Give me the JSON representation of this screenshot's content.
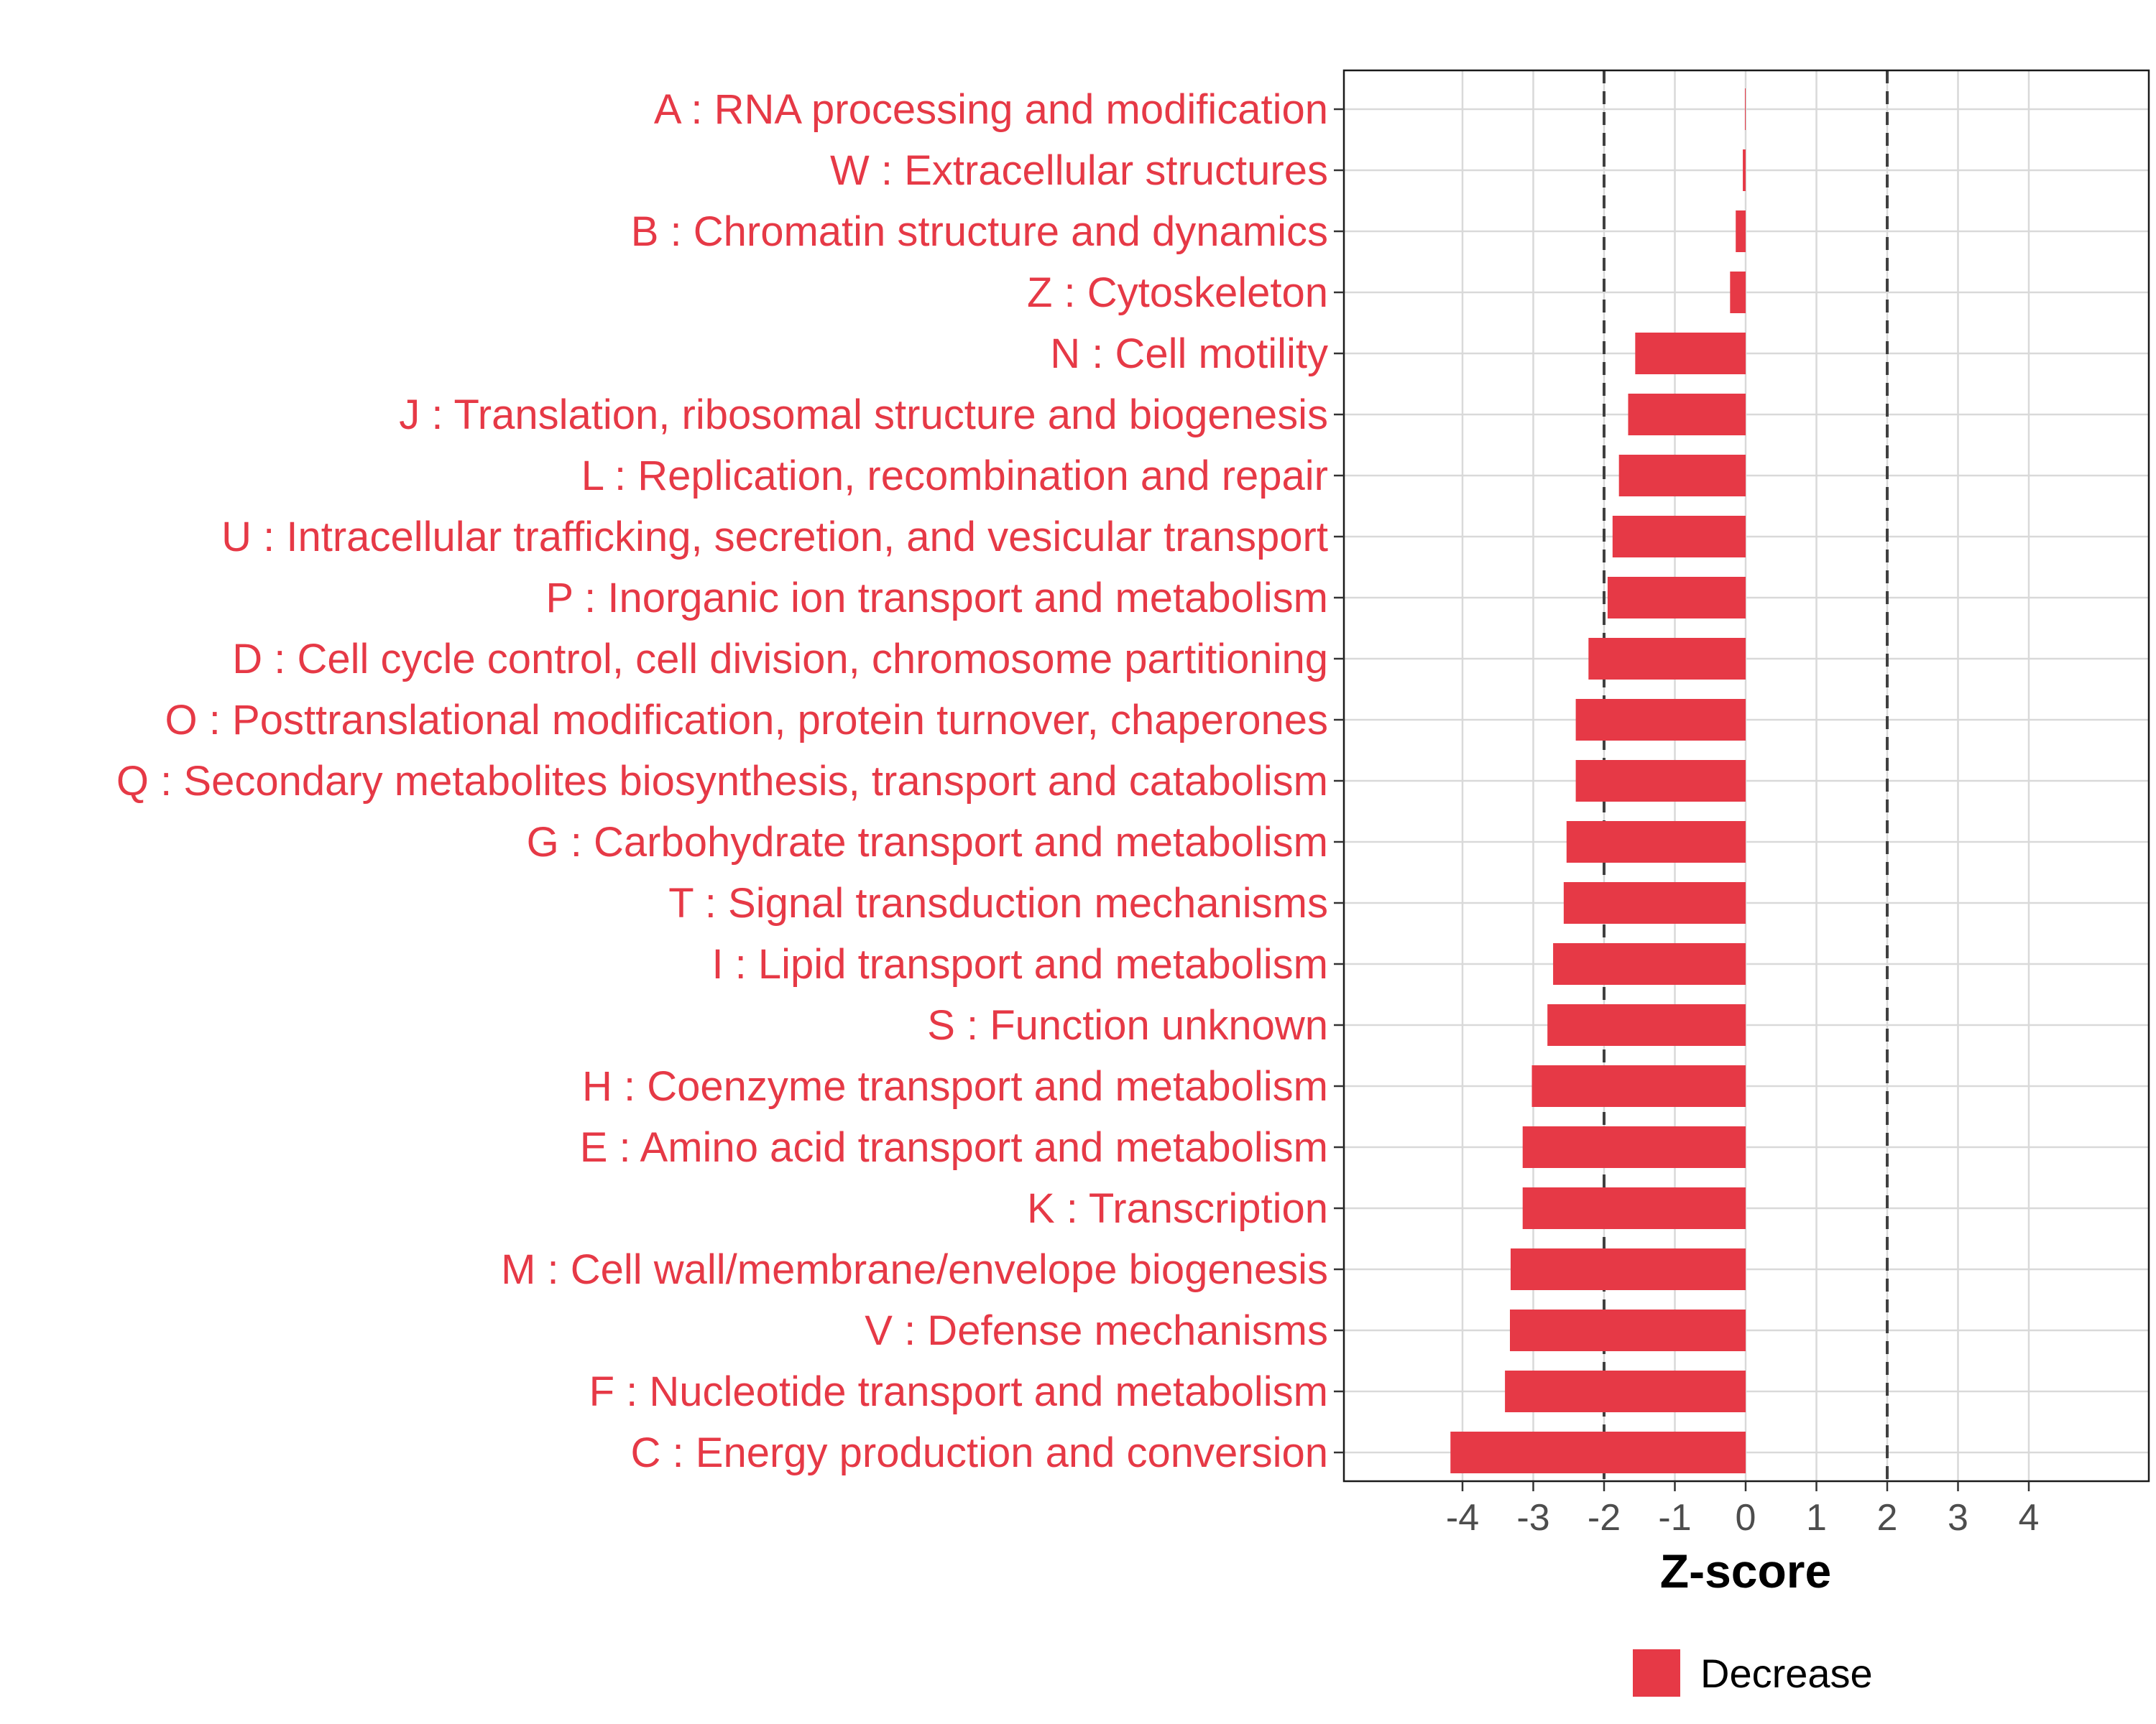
{
  "chart_data": {
    "type": "bar",
    "orientation": "horizontal",
    "categories": [
      "A : RNA processing and modification",
      "W : Extracellular structures",
      "B : Chromatin structure and dynamics",
      "Z : Cytoskeleton",
      "N : Cell motility",
      "J : Translation, ribosomal structure and biogenesis",
      "L : Replication, recombination and repair",
      "U : Intracellular trafficking, secretion, and vesicular transport",
      "P : Inorganic ion transport and metabolism",
      "D : Cell cycle control, cell division, chromosome partitioning",
      "O : Posttranslational modification, protein turnover, chaperones",
      "Q : Secondary metabolites biosynthesis, transport and catabolism",
      "G : Carbohydrate transport and metabolism",
      "T : Signal transduction mechanisms",
      "I : Lipid transport and metabolism",
      "S : Function unknown",
      "H : Coenzyme transport and metabolism",
      "E : Amino acid transport and metabolism",
      "K : Transcription",
      "M : Cell wall/membrane/envelope biogenesis",
      "V : Defense mechanisms",
      "F : Nucleotide transport and metabolism",
      "C : Energy production and conversion"
    ],
    "values": [
      -0.01,
      -0.04,
      -0.14,
      -0.22,
      -1.56,
      -1.66,
      -1.79,
      -1.88,
      -1.95,
      -2.22,
      -2.4,
      -2.4,
      -2.53,
      -2.57,
      -2.72,
      -2.8,
      -3.02,
      -3.15,
      -3.15,
      -3.32,
      -3.33,
      -3.4,
      -4.17
    ],
    "xlabel": "Z-score",
    "ylabel": "",
    "xlim": [
      -5.7,
      5.7
    ],
    "xticks": [
      "-4",
      "-3",
      "-2",
      "-1",
      "0",
      "1",
      "2",
      "3",
      "4"
    ],
    "reference_lines": [
      -2,
      2
    ],
    "grid": true,
    "legend": {
      "position": "bottom",
      "entries": [
        {
          "name": "Decrease",
          "color": "#e63946"
        }
      ]
    },
    "colors": {
      "bar": "#e63946",
      "label": "#e63946",
      "grid": "#d9d9d9",
      "reference": "#404040"
    }
  }
}
